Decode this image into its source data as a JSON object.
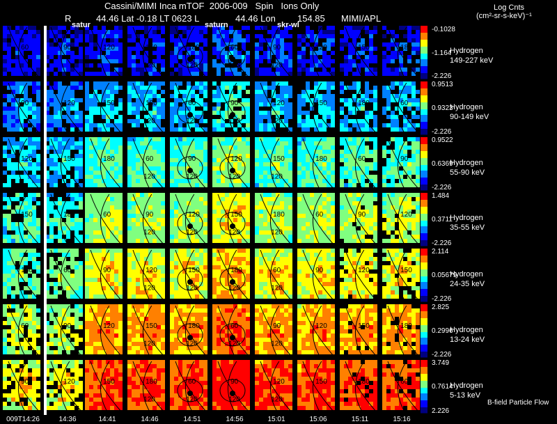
{
  "header": {
    "title": "Cassini/MIMI Inca mTOF  2006-009   Spin   Ions Only",
    "r_label": "R",
    "position_line": "44.46 Lat -0.18 LT 0623 L",
    "lon_value": "44.46 Lon",
    "lon_number": "154.85",
    "org": "MIMI/APL",
    "units_title": "Log Cnts",
    "units": "(cm²-sr-s-keV)⁻¹"
  },
  "overlays": {
    "label_a": "satur",
    "label_b": "saturn",
    "label_c": "skr-wl"
  },
  "footer": {
    "bfield_label": "B-field Particle Flow"
  },
  "chart_data": {
    "type": "heatmap",
    "x_tick_labels": [
      "009T14:26",
      "14:36",
      "14:41",
      "14:46",
      "14:51",
      "14:56",
      "15:01",
      "15:06",
      "15:11",
      "15:16"
    ],
    "contour_labels": [
      "60",
      "90",
      "120",
      "150",
      "180"
    ],
    "colormap": [
      "#000080",
      "#0000ff",
      "#0080ff",
      "#00ffff",
      "#80ff80",
      "#ffff00",
      "#ff8000",
      "#ff0000"
    ],
    "channels": [
      {
        "species": "Hydrogen",
        "energy": "149-227 keV",
        "cmax": "-0.1028",
        "cmid": "-1.164",
        "cmin": "-2.226",
        "level": 0.12
      },
      {
        "species": "Hydrogen",
        "energy": "90-149 keV",
        "cmax": "0.9513",
        "cmid": "0.9323",
        "cmin": "-2.226",
        "level": 0.3
      },
      {
        "species": "Hydrogen",
        "energy": "55-90 keV",
        "cmax": "0.9522",
        "cmid": "0.6369",
        "cmin": "-2.226",
        "level": 0.42
      },
      {
        "species": "Hydrogen",
        "energy": "35-55 keV",
        "cmax": "1.484",
        "cmid": "0.3711",
        "cmin": "-2.226",
        "level": 0.52
      },
      {
        "species": "Hydrogen",
        "energy": "24-35 keV",
        "cmax": "2.114",
        "cmid": "0.05679",
        "cmin": "-2.226",
        "level": 0.6
      },
      {
        "species": "Hydrogen",
        "energy": "13-24 keV",
        "cmax": "2.825",
        "cmid": "0.2996",
        "cmin": "-2.226",
        "level": 0.7
      },
      {
        "species": "Hydrogen",
        "energy": "5-13 keV",
        "cmax": "3.749",
        "cmid": "0.7614",
        "cmin": "2.226",
        "level": 0.8
      }
    ]
  }
}
